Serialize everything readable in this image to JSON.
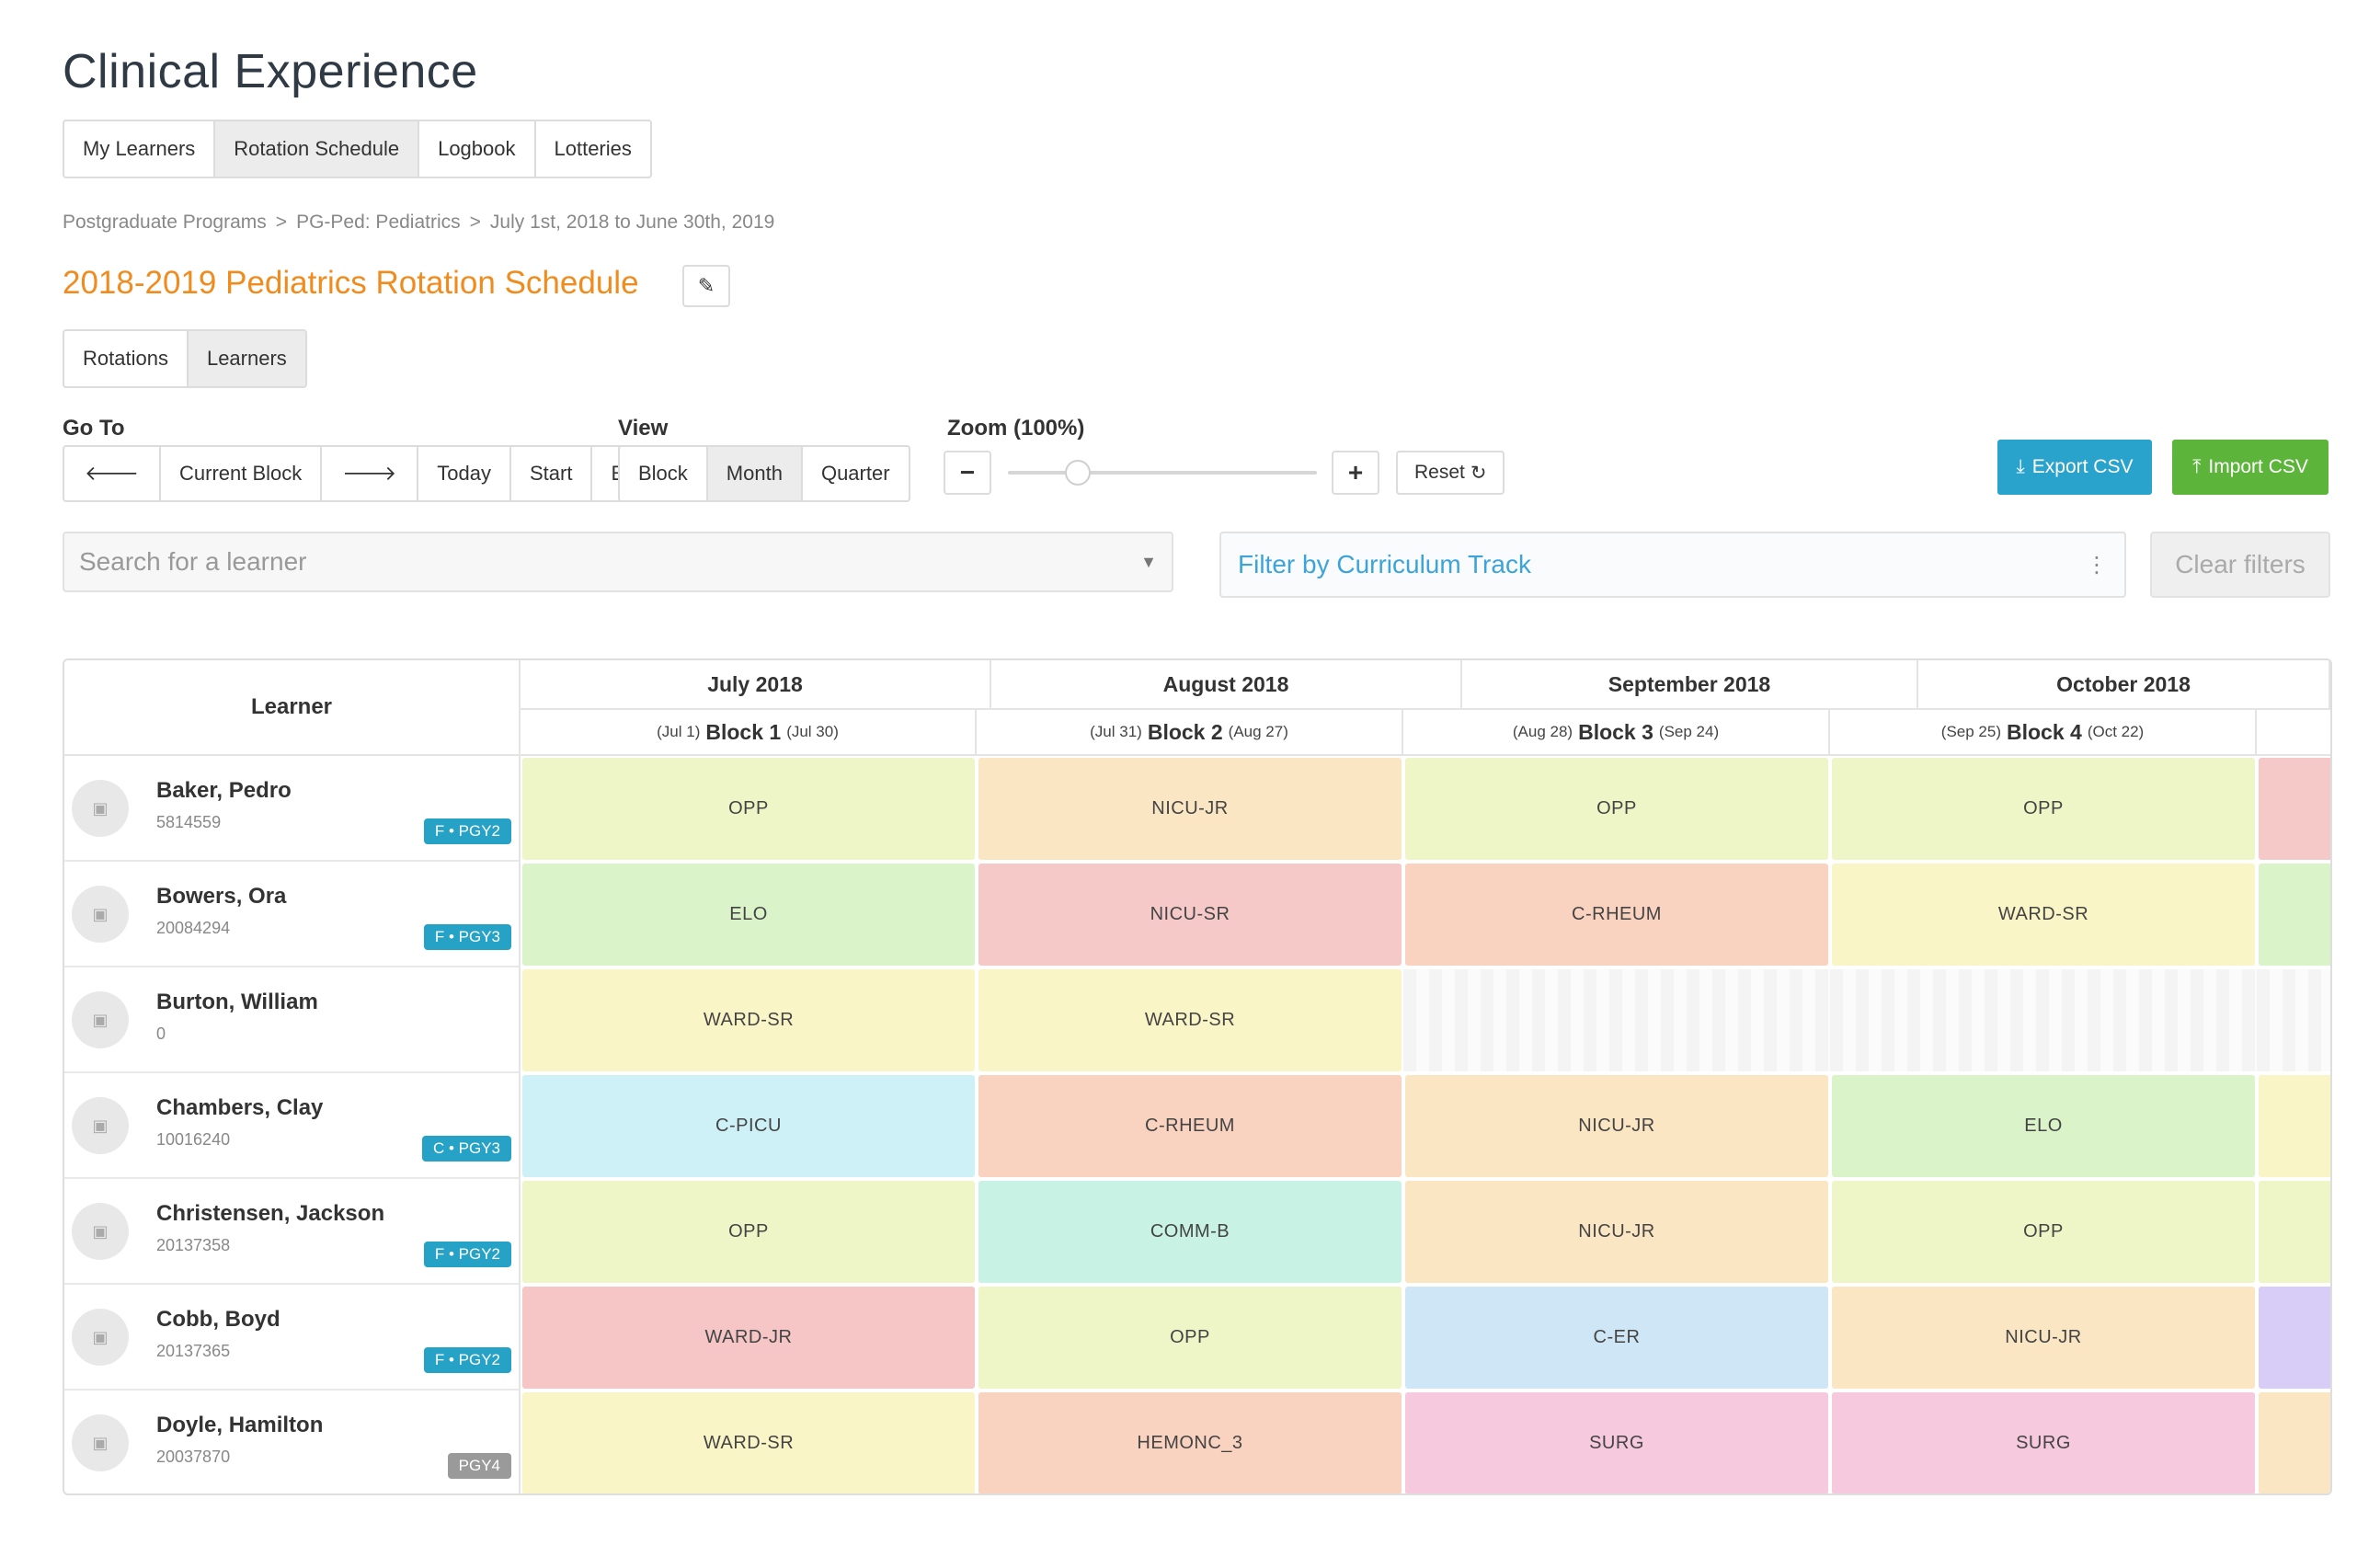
{
  "app": {
    "title": "Clinical Experience"
  },
  "main_tabs": [
    {
      "label": "My Learners",
      "active": false
    },
    {
      "label": "Rotation Schedule",
      "active": true
    },
    {
      "label": "Logbook",
      "active": false
    },
    {
      "label": "Lotteries",
      "active": false
    }
  ],
  "breadcrumb": {
    "items": [
      "Postgraduate Programs",
      "PG-Ped: Pediatrics",
      "July 1st, 2018 to June 30th, 2019"
    ],
    "separator": ">"
  },
  "schedule": {
    "title": "2018-2019 Pediatrics Rotation Schedule",
    "title_color": "#f08c1e"
  },
  "sub_tabs": [
    {
      "label": "Rotations",
      "active": false
    },
    {
      "label": "Learners",
      "active": true
    }
  ],
  "goto": {
    "label": "Go To",
    "prev_icon": "arrow-left-icon",
    "current_block": "Current Block",
    "next_icon": "arrow-right-icon",
    "today": "Today",
    "start": "Start",
    "end": "End"
  },
  "view": {
    "label": "View",
    "options": [
      "Block",
      "Month",
      "Quarter"
    ],
    "selected": "Month"
  },
  "zoom": {
    "label": "Zoom (100%)",
    "minus": "−",
    "plus": "+",
    "reset": "Reset",
    "reset_icon": "refresh-icon",
    "level": 1.0
  },
  "actions": {
    "export": "Export CSV",
    "import": "Import CSV",
    "export_color": "#2aa3cc",
    "import_color": "#5cb53a"
  },
  "search": {
    "placeholder": "Search for a learner"
  },
  "filter": {
    "placeholder": "Filter by Curriculum Track"
  },
  "clear": {
    "label": "Clear filters"
  },
  "grid": {
    "learner_header": "Learner",
    "months": [
      "July 2018",
      "August 2018",
      "September 2018",
      "October 2018"
    ],
    "blocks": [
      {
        "start": "(Jul 1)",
        "name": "Block 1",
        "end": "(Jul 30)"
      },
      {
        "start": "(Jul 31)",
        "name": "Block 2",
        "end": "(Aug 27)"
      },
      {
        "start": "(Aug 28)",
        "name": "Block 3",
        "end": "(Sep 24)"
      },
      {
        "start": "(Sep 25)",
        "name": "Block 4",
        "end": "(Oct 22)"
      }
    ],
    "rotation_colors": {
      "OPP": "#eef6c8",
      "NICU-JR": "#fbe6c3",
      "NICU-SR": "#f6c9c9",
      "ELO": "#daf3c8",
      "C-RHEUM": "#f9d3c0",
      "WARD-SR": "#faf5c6",
      "WARD-JR": "#f6c6c6",
      "C-PICU": "#cdf1f6",
      "COMM-B": "#c8f2e4",
      "C-ER": "#cfe6f7",
      "HEMONC_3": "#f9d3c0",
      "SURG": "#f6c9df"
    },
    "learners": [
      {
        "name": "Baker, Pedro",
        "id": "5814559",
        "badge": "F • PGY2",
        "badge_style": "teal",
        "rotations": [
          "OPP",
          "NICU-JR",
          "OPP",
          "OPP"
        ],
        "overflow_color": "#f6c9c9"
      },
      {
        "name": "Bowers, Ora",
        "id": "20084294",
        "badge": "F • PGY3",
        "badge_style": "teal",
        "rotations": [
          "ELO",
          "NICU-SR",
          "C-RHEUM",
          "WARD-SR"
        ],
        "overflow_color": "#daf3c8"
      },
      {
        "name": "Burton, William",
        "id": "0",
        "badge": "",
        "badge_style": "",
        "rotations": [
          "WARD-SR",
          "WARD-SR",
          "",
          ""
        ],
        "overflow_color": ""
      },
      {
        "name": "Chambers, Clay",
        "id": "10016240",
        "badge": "C • PGY3",
        "badge_style": "teal",
        "rotations": [
          "C-PICU",
          "C-RHEUM",
          "NICU-JR",
          "ELO"
        ],
        "overflow_color": "#faf5c6"
      },
      {
        "name": "Christensen, Jackson",
        "id": "20137358",
        "badge": "F • PGY2",
        "badge_style": "teal",
        "rotations": [
          "OPP",
          "COMM-B",
          "NICU-JR",
          "OPP"
        ],
        "overflow_color": "#eef6c8"
      },
      {
        "name": "Cobb, Boyd",
        "id": "20137365",
        "badge": "F • PGY2",
        "badge_style": "teal",
        "rotations": [
          "WARD-JR",
          "OPP",
          "C-ER",
          "NICU-JR"
        ],
        "overflow_color": "#d8cdf7"
      },
      {
        "name": "Doyle, Hamilton",
        "id": "20037870",
        "badge": "PGY4",
        "badge_style": "gray",
        "rotations": [
          "WARD-SR",
          "HEMONC_3",
          "SURG",
          "SURG"
        ],
        "overflow_color": "#fbe6c3"
      }
    ]
  }
}
